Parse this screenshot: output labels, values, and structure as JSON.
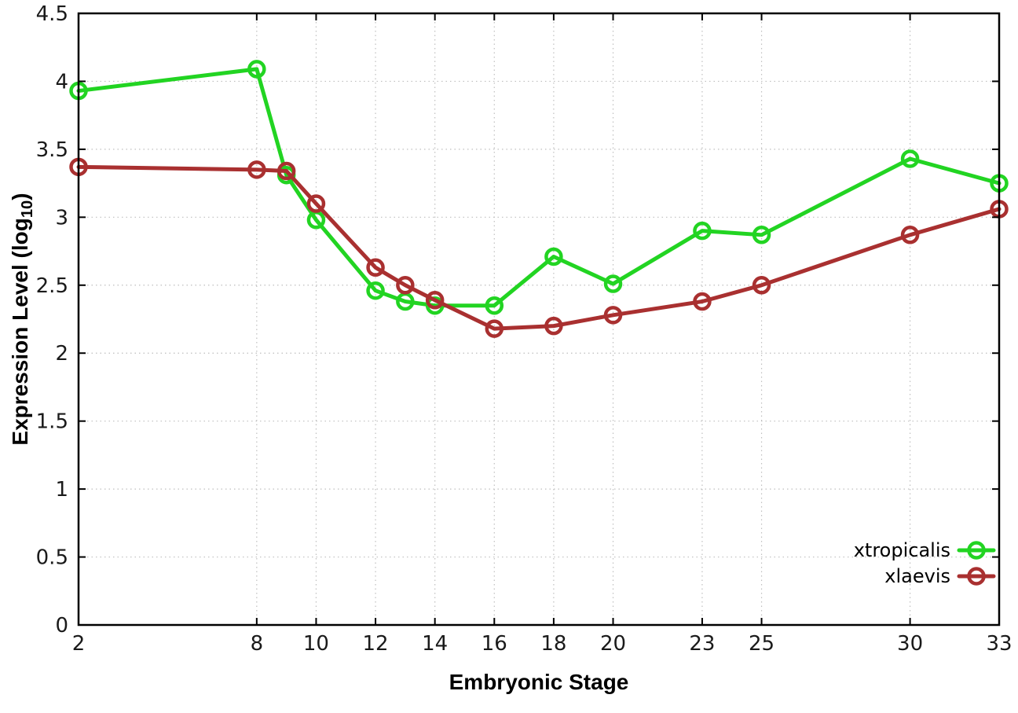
{
  "page": {
    "background": "#ffffff"
  },
  "chart_data": {
    "type": "line",
    "title": "",
    "xlabel": "Embryonic Stage",
    "ylabel": "Expression Level (log10)",
    "ylabel_parts": {
      "main": "Expression Level (log",
      "sub": "10",
      "close": ")"
    },
    "x": [
      2,
      8,
      9,
      10,
      12,
      13,
      14,
      16,
      18,
      20,
      23,
      25,
      30,
      33
    ],
    "series": [
      {
        "name": "xtropicalis",
        "color": "#22d422",
        "values": [
          3.93,
          4.09,
          3.31,
          2.98,
          2.46,
          2.38,
          2.35,
          2.35,
          2.71,
          2.51,
          2.9,
          2.87,
          3.43,
          3.25
        ]
      },
      {
        "name": "xlaevis",
        "color": "#a93030",
        "values": [
          3.37,
          3.35,
          3.34,
          3.1,
          2.63,
          2.5,
          2.39,
          2.18,
          2.2,
          2.28,
          2.38,
          2.5,
          2.87,
          3.06
        ]
      }
    ],
    "xlim": [
      2,
      33
    ],
    "ylim": [
      0,
      4.5
    ],
    "x_ticks": [
      2,
      8,
      10,
      12,
      14,
      16,
      18,
      20,
      23,
      25,
      30,
      33
    ],
    "x_tick_labels": [
      "2",
      "8",
      "10",
      "12",
      "14",
      "16",
      "18",
      "20",
      "23",
      "25",
      "30",
      "33"
    ],
    "y_ticks": [
      0,
      0.5,
      1,
      1.5,
      2,
      2.5,
      3,
      3.5,
      4,
      4.5
    ],
    "y_tick_labels": [
      "0",
      "0.5",
      "1",
      "1.5",
      "2",
      "2.5",
      "3",
      "3.5",
      "4",
      "4.5"
    ],
    "grid": true,
    "grid_style": "dotted",
    "grid_color": "#bfbfbf",
    "border_color": "#000000",
    "tick_label_color": "#1a1a1a",
    "marker": "open-circle",
    "legend_position": "bottom-right-inside",
    "legend_items": [
      "xtropicalis",
      "xlaevis"
    ]
  }
}
